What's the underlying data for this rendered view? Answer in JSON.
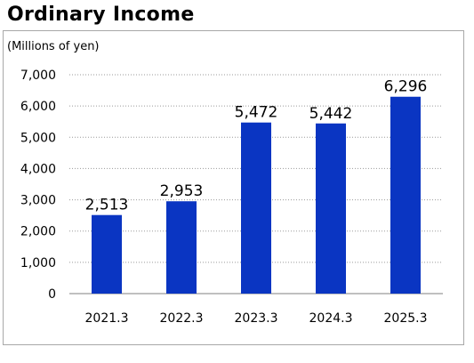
{
  "chart_data": {
    "type": "bar",
    "title": "Ordinary Income",
    "ylabel": "(Millions of yen)",
    "xlabel": "",
    "categories": [
      "2021.3",
      "2022.3",
      "2023.3",
      "2024.3",
      "2025.3"
    ],
    "values": [
      2513,
      2953,
      5472,
      5442,
      6296
    ],
    "value_labels": [
      "2,513",
      "2,953",
      "5,472",
      "5,442",
      "6,296"
    ],
    "ylim": [
      0,
      7000
    ],
    "yticks": [
      0,
      1000,
      2000,
      3000,
      4000,
      5000,
      6000,
      7000
    ],
    "ytick_labels": [
      "0",
      "1,000",
      "2,000",
      "3,000",
      "4,000",
      "5,000",
      "6,000",
      "7,000"
    ],
    "grid": "horizontal-dotted",
    "legend": "none",
    "bar_color": "#0a35c2"
  }
}
